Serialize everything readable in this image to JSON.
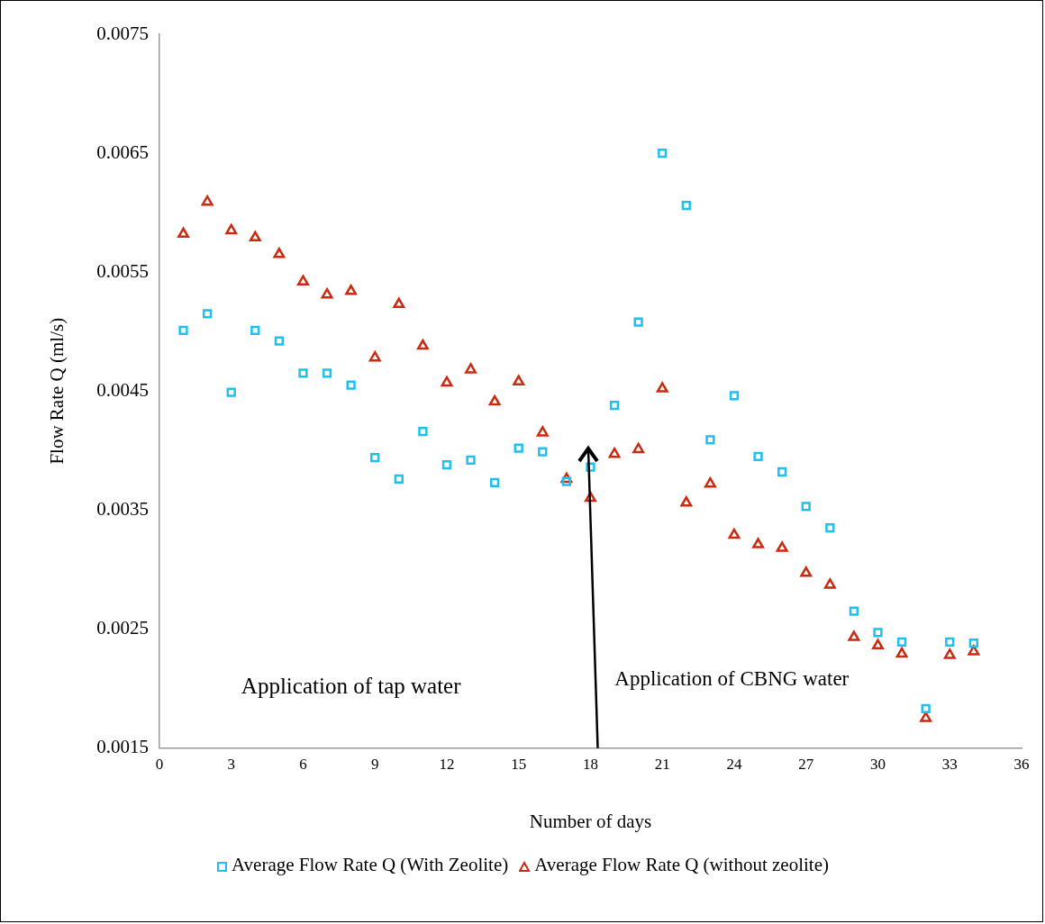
{
  "chart_data": {
    "type": "scatter",
    "xlabel": "Number of days",
    "ylabel": "Flow Rate Q (ml/s)",
    "x": [
      1,
      2,
      3,
      4,
      5,
      6,
      7,
      8,
      9,
      10,
      11,
      12,
      13,
      14,
      15,
      16,
      17,
      18,
      19,
      20,
      21,
      22,
      23,
      24,
      25,
      26,
      27,
      28,
      29,
      30,
      31,
      32,
      33,
      34
    ],
    "xlim": [
      0,
      36
    ],
    "xticks": [
      0,
      3,
      6,
      9,
      12,
      15,
      18,
      21,
      24,
      27,
      30,
      33,
      36
    ],
    "ylim": [
      0.0015,
      0.0075
    ],
    "yticks": [
      0.0015,
      0.0025,
      0.0035,
      0.0045,
      0.0055,
      0.0065,
      0.0075
    ],
    "grid": false,
    "legend": "bottom",
    "annotations": [
      "Application of tap water",
      "Application of CBNG water"
    ],
    "series": [
      {
        "name": "Average Flow Rate Q (With Zeolite)",
        "color": "#1ec0f0",
        "marker": "square",
        "values": [
          0.00501,
          0.00515,
          0.00449,
          0.00501,
          0.00492,
          0.00465,
          0.00465,
          0.00455,
          0.00394,
          0.00376,
          0.00416,
          0.00388,
          0.00392,
          0.00373,
          0.00402,
          0.00399,
          0.00374,
          0.00386,
          0.00438,
          0.00508,
          0.0065,
          0.00606,
          0.00409,
          0.00446,
          0.00395,
          0.00382,
          0.00353,
          0.00335,
          0.00265,
          0.00247,
          0.00239,
          0.00183,
          0.00239,
          0.00238
        ]
      },
      {
        "name": "Average Flow Rate Q (without zeolite)",
        "color": "#cc2a10",
        "marker": "triangle",
        "values": [
          0.00582,
          0.00609,
          0.00585,
          0.00579,
          0.00565,
          0.00542,
          0.00531,
          0.00534,
          0.00478,
          0.00523,
          0.00488,
          0.00457,
          0.00468,
          0.00441,
          0.00458,
          0.00415,
          0.00376,
          0.0036,
          0.00397,
          0.00401,
          0.00452,
          0.00356,
          0.00372,
          0.00329,
          0.00321,
          0.00318,
          0.00297,
          0.00287,
          0.00243,
          0.00236,
          0.00229,
          0.00175,
          0.00228,
          0.00231
        ]
      }
    ]
  }
}
